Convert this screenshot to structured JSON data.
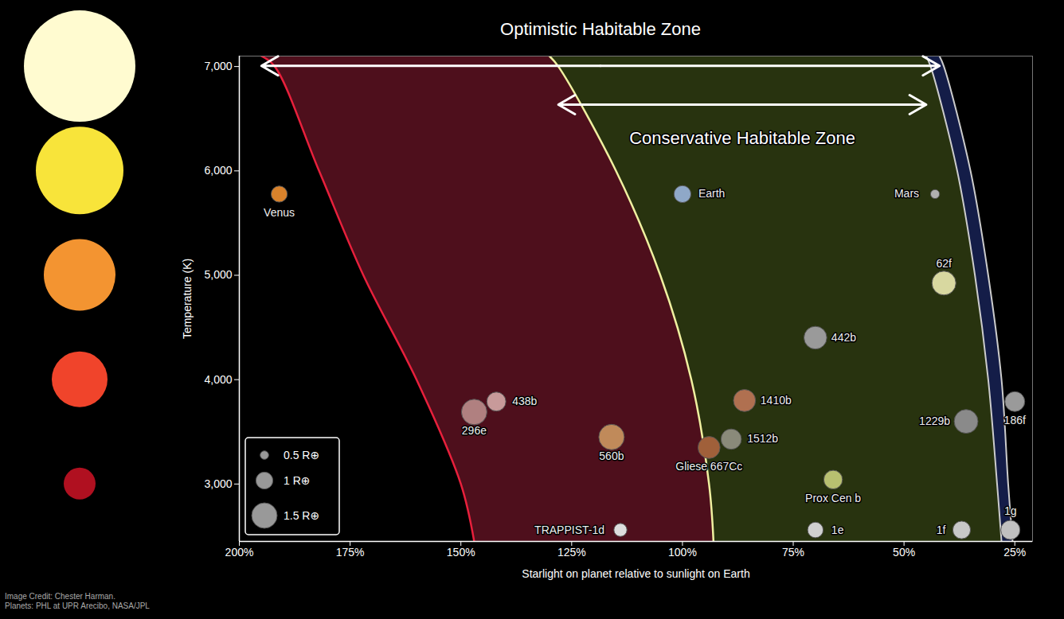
{
  "chart_data": {
    "type": "scatter",
    "x_label": "Starlight on planet relative to sunlight on Earth",
    "y_label": "Temperature (K)",
    "xlim": [
      200,
      21
    ],
    "ylim": [
      2450,
      7100
    ],
    "xticks": [
      {
        "value": 200,
        "label": "200%"
      },
      {
        "value": 175,
        "label": "175%"
      },
      {
        "value": 150,
        "label": "150%"
      },
      {
        "value": 125,
        "label": "125%"
      },
      {
        "value": 100,
        "label": "100%"
      },
      {
        "value": 75,
        "label": "75%"
      },
      {
        "value": 50,
        "label": "50%"
      },
      {
        "value": 25,
        "label": "25%"
      }
    ],
    "yticks": [
      {
        "value": 3000,
        "label": "3,000"
      },
      {
        "value": 4000,
        "label": "4,000"
      },
      {
        "value": 5000,
        "label": "5,000"
      },
      {
        "value": 6000,
        "label": "6,000"
      },
      {
        "value": 7000,
        "label": "7,000"
      }
    ],
    "grid": false,
    "point_labels": [
      "Venus",
      "Earth",
      "Mars",
      "62f",
      "442b",
      "1410b",
      "438b",
      "296e",
      "560b",
      "Gliese 667Cc",
      "1512b",
      "Prox Cen b",
      "1229b",
      "186f",
      "TRAPPIST-1d",
      "1e",
      "1f",
      "1g"
    ],
    "x": [
      191,
      100,
      43,
      41,
      70,
      86,
      142,
      147,
      116,
      94,
      89,
      66,
      36,
      25,
      114,
      70,
      37,
      26
    ],
    "values": [
      5778,
      5778,
      5778,
      4925,
      4402,
      3800,
      3790,
      3690,
      3450,
      3350,
      3430,
      3042,
      3600,
      3790,
      2560,
      2560,
      2560,
      2560
    ],
    "radius": [
      0.95,
      1.0,
      0.53,
      1.41,
      1.34,
      1.3,
      1.12,
      1.5,
      1.5,
      1.3,
      1.2,
      1.1,
      1.4,
      1.17,
      0.77,
      0.92,
      1.04,
      1.13
    ],
    "colors": [
      "#d9822b",
      "#8fa8c8",
      "#b0b0b0",
      "#d8d8a0",
      "#9a9a9a",
      "#b07050",
      "#c89a9a",
      "#b08080",
      "#c08a5a",
      "#a0603a",
      "#8a8a7a",
      "#b8c070",
      "#8a8a8a",
      "#9a9a9a",
      "#dddddd",
      "#d0d0d0",
      "#c8c8c8",
      "#c0c0c0"
    ],
    "size_legend": {
      "values": [
        0.5,
        1,
        1.5
      ],
      "labels": [
        "0.5 R⊕",
        "1 R⊕",
        "1.5 R⊕"
      ]
    },
    "zones": {
      "temperature": [
        7100,
        7000,
        6000,
        5000,
        4000,
        3000,
        2450
      ],
      "optimistic": {
        "label": "Optimistic Habitable Zone",
        "inner": [
          195,
          192,
          182,
          172,
          160,
          150,
          147
        ],
        "outer": [
          42,
          41,
          35,
          31,
          28,
          26.5,
          25.5
        ]
      },
      "conservative": {
        "label": "Conservative Habitable Zone",
        "inner": [
          130,
          128,
          115,
          105,
          98,
          94,
          93
        ],
        "outer": [
          45,
          44,
          38,
          34,
          31,
          29,
          28
        ]
      }
    },
    "credit": [
      "Image Credit: Chester Harman.",
      "Planets: PHL at UPR Arecibo, NASA/JPL"
    ]
  }
}
